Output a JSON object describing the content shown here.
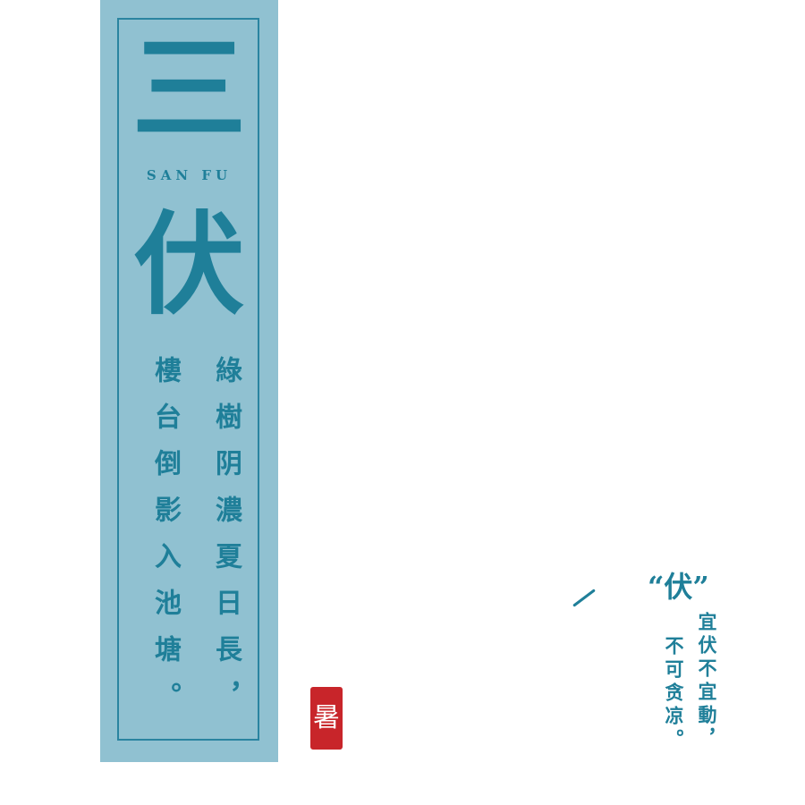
{
  "panel": {
    "title_char_1": "三",
    "subtitle": "SAN FU",
    "title_char_2": "伏",
    "poem_right": "綠樹阴濃夏日長，",
    "poem_left": "樓台倒影入池塘。"
  },
  "seal": {
    "text": "暑"
  },
  "note": {
    "quote": "“伏”",
    "line_1": "宜伏不宜動，",
    "line_2": "不可贪凉。"
  },
  "colors": {
    "panel": "#90c1d1",
    "text": "#1f7f99",
    "seal": "#c8252a"
  }
}
